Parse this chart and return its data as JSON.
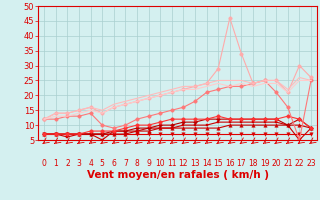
{
  "xlabel": "Vent moyen/en rafales ( km/h )",
  "x": [
    0,
    1,
    2,
    3,
    4,
    5,
    6,
    7,
    8,
    9,
    10,
    11,
    12,
    13,
    14,
    15,
    16,
    17,
    18,
    19,
    20,
    21,
    22,
    23
  ],
  "lines": [
    {
      "color": "#dd0000",
      "linewidth": 0.8,
      "marker": "v",
      "markersize": 2.5,
      "values": [
        7,
        7,
        7,
        7,
        7,
        7,
        7,
        7,
        7,
        7,
        7,
        7,
        7,
        7,
        7,
        7,
        7,
        7,
        7,
        7,
        7,
        7,
        7,
        7
      ]
    },
    {
      "color": "#cc0000",
      "linewidth": 0.8,
      "marker": "^",
      "markersize": 2.5,
      "values": [
        7,
        7,
        7,
        7,
        7,
        7,
        7,
        7,
        8,
        8,
        9,
        9,
        9,
        9,
        9,
        9,
        10,
        10,
        10,
        10,
        10,
        10,
        10,
        9
      ]
    },
    {
      "color": "#cc0000",
      "linewidth": 0.8,
      "marker": "s",
      "markersize": 2.0,
      "values": [
        7,
        7,
        6,
        7,
        7,
        5,
        8,
        8,
        8,
        9,
        9,
        9,
        10,
        10,
        10,
        11,
        11,
        11,
        11,
        11,
        11,
        10,
        5,
        9
      ]
    },
    {
      "color": "#bb0000",
      "linewidth": 0.8,
      "marker": "D",
      "markersize": 2.0,
      "values": [
        7,
        7,
        7,
        7,
        7,
        7,
        8,
        8,
        9,
        9,
        10,
        10,
        11,
        11,
        12,
        12,
        12,
        12,
        12,
        12,
        12,
        10,
        12,
        9
      ]
    },
    {
      "color": "#ff3333",
      "linewidth": 0.8,
      "marker": "o",
      "markersize": 2.5,
      "values": [
        7,
        7,
        7,
        7,
        8,
        8,
        8,
        9,
        10,
        10,
        11,
        12,
        12,
        12,
        12,
        13,
        12,
        12,
        12,
        12,
        12,
        13,
        12,
        9
      ]
    },
    {
      "color": "#ff7777",
      "linewidth": 0.8,
      "marker": "o",
      "markersize": 2.5,
      "values": [
        12,
        12,
        13,
        13,
        14,
        10,
        9,
        10,
        12,
        13,
        14,
        15,
        16,
        18,
        21,
        22,
        23,
        23,
        24,
        25,
        21,
        16,
        5,
        25
      ]
    },
    {
      "color": "#ffaaaa",
      "linewidth": 0.8,
      "marker": "o",
      "markersize": 2.5,
      "values": [
        12,
        14,
        14,
        15,
        16,
        14,
        16,
        17,
        18,
        19,
        20,
        21,
        22,
        23,
        24,
        29,
        46,
        34,
        24,
        25,
        25,
        21,
        30,
        26
      ]
    },
    {
      "color": "#ffbbbb",
      "linewidth": 0.8,
      "marker": null,
      "markersize": 0,
      "values": [
        12,
        14,
        14,
        15,
        16,
        15,
        17,
        18,
        19,
        20,
        21,
        22,
        23,
        23,
        24,
        25,
        25,
        25,
        24,
        25,
        25,
        22,
        26,
        25
      ]
    },
    {
      "color": "#ffcccc",
      "linewidth": 0.8,
      "marker": null,
      "markersize": 0,
      "values": [
        12,
        13,
        13,
        14,
        15,
        14,
        16,
        17,
        18,
        19,
        20,
        21,
        22,
        22,
        23,
        24,
        23,
        24,
        23,
        24,
        24,
        21,
        25,
        25
      ]
    }
  ],
  "ylim": [
    5,
    50
  ],
  "yticks": [
    5,
    10,
    15,
    20,
    25,
    30,
    35,
    40,
    45,
    50
  ],
  "xticks": [
    0,
    1,
    2,
    3,
    4,
    5,
    6,
    7,
    8,
    9,
    10,
    11,
    12,
    13,
    14,
    15,
    16,
    17,
    18,
    19,
    20,
    21,
    22,
    23
  ],
  "bg_color": "#d4f0f0",
  "grid_color": "#aad0d0",
  "tick_color": "#dd0000",
  "label_color": "#dd0000",
  "xlabel_fontsize": 7.5,
  "ytick_fontsize": 6,
  "xtick_fontsize": 5.5
}
